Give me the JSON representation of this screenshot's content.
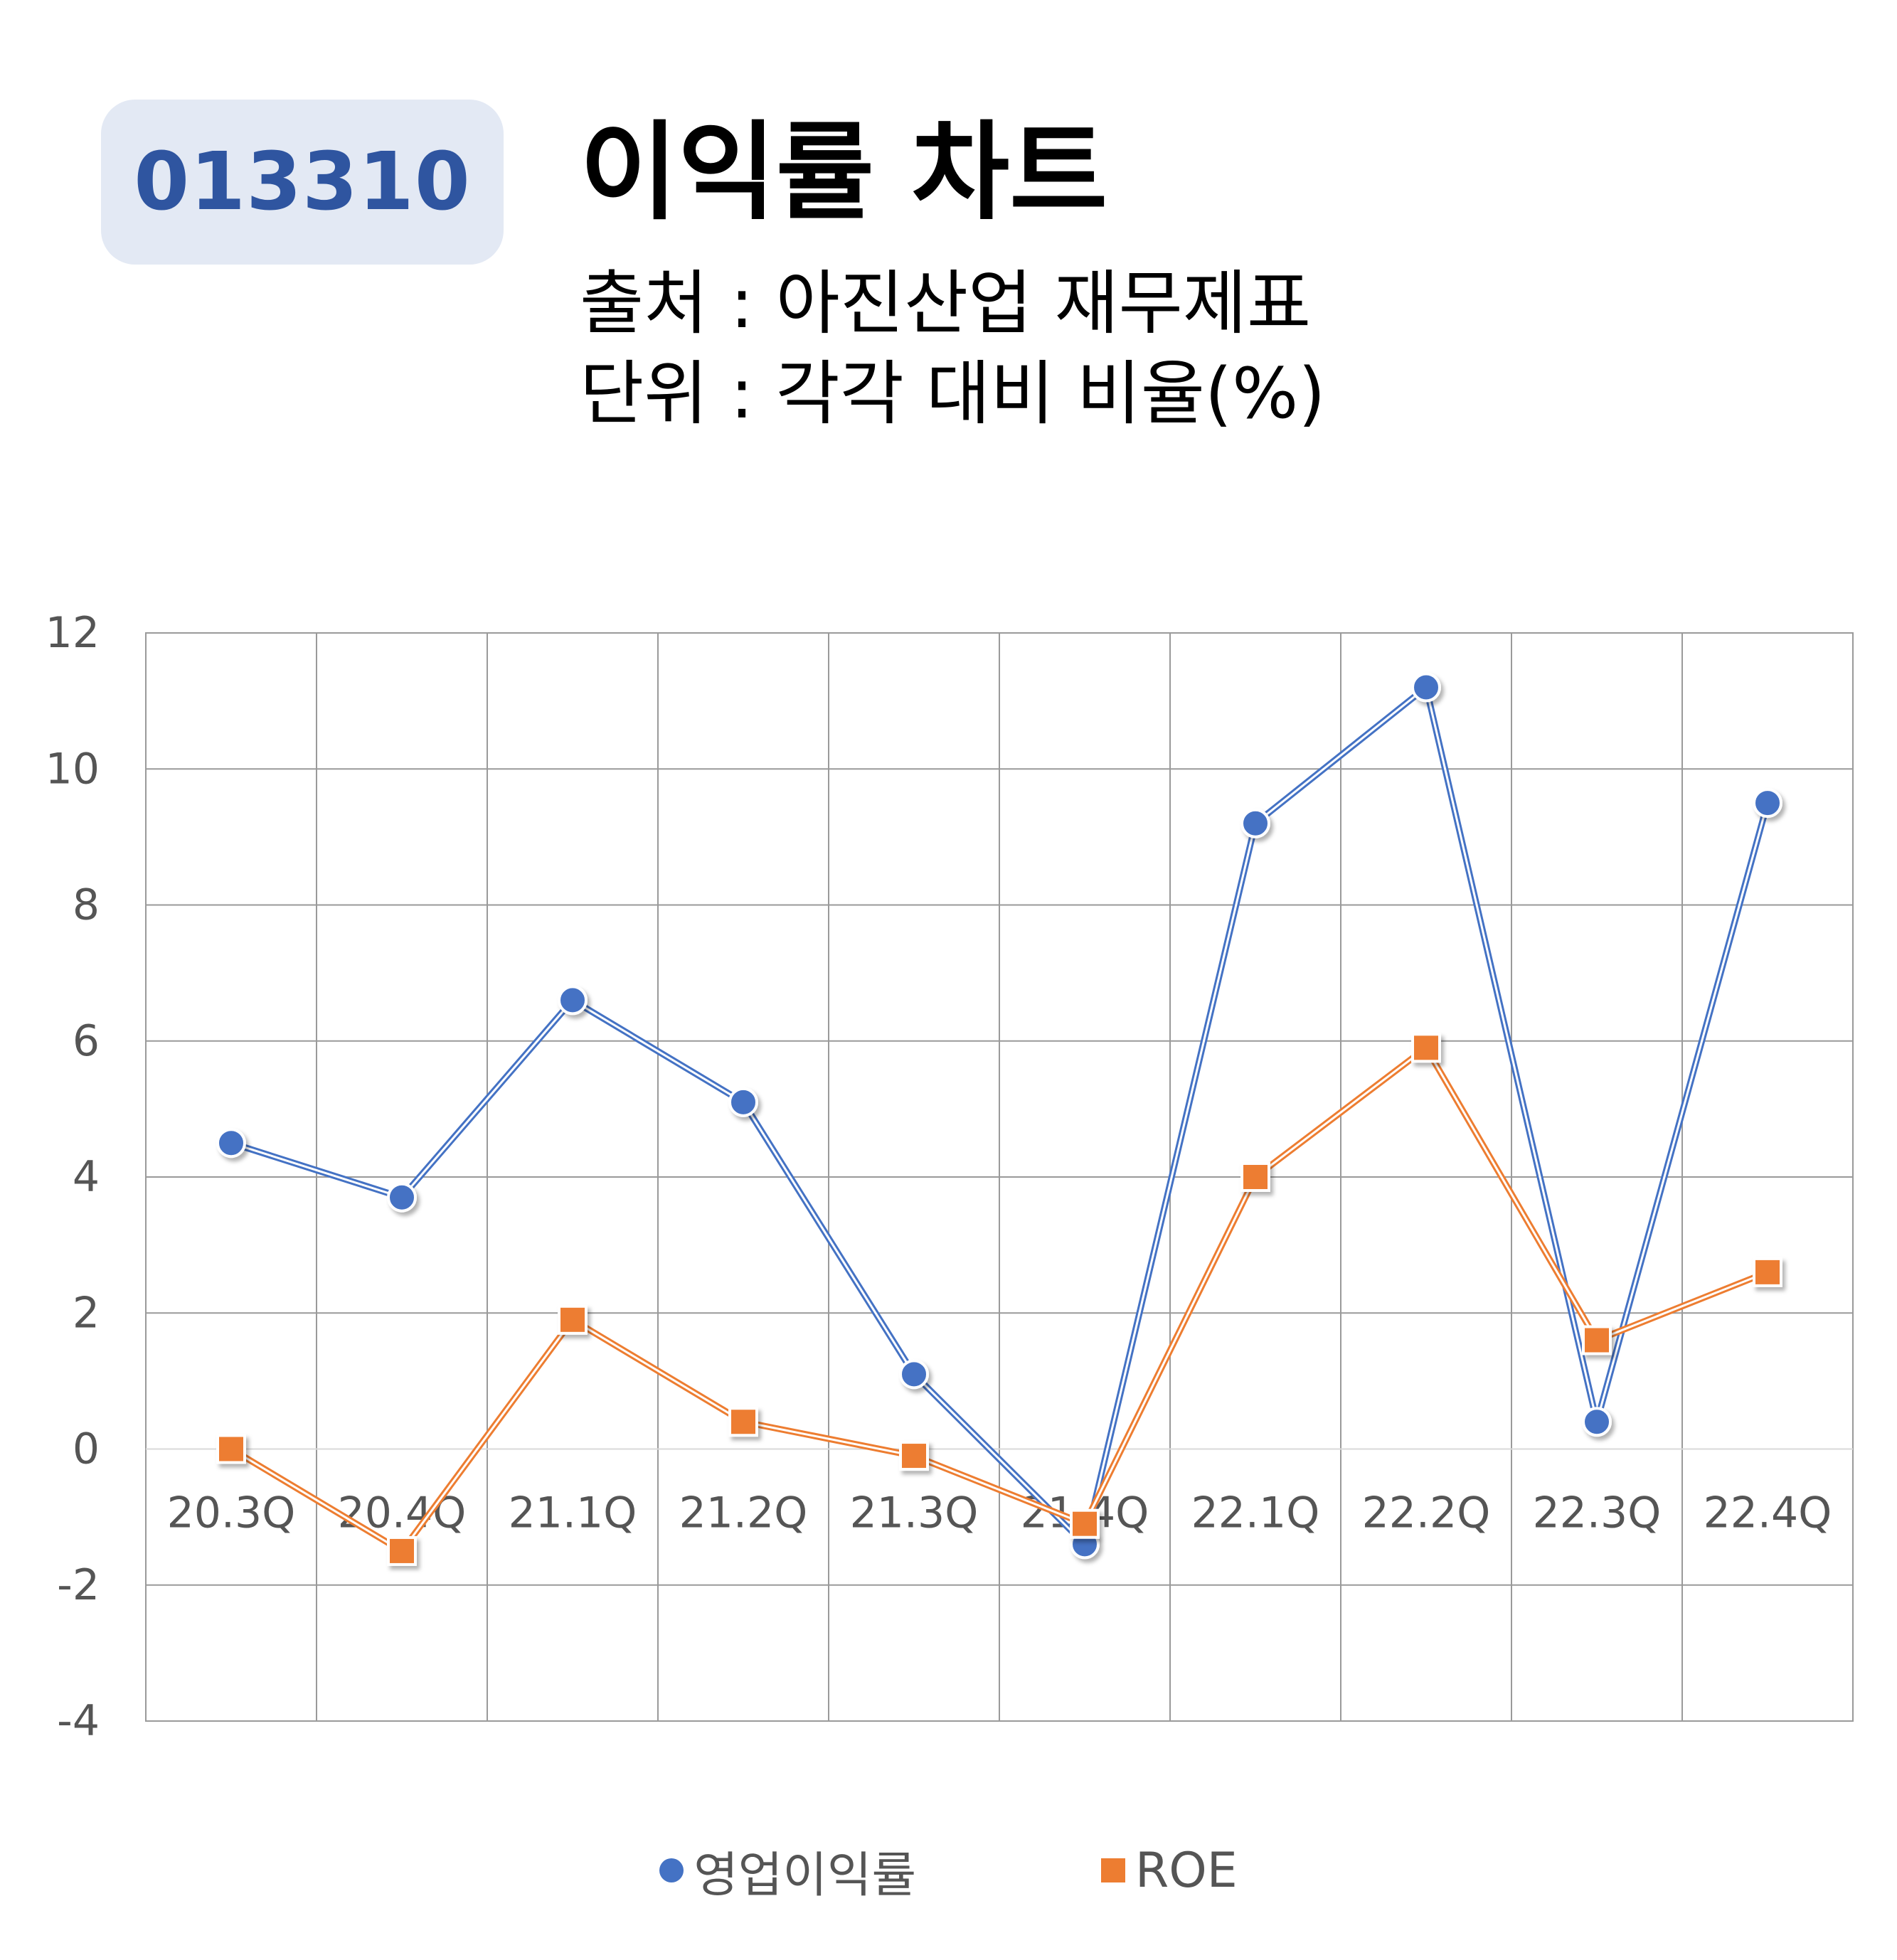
{
  "badge": {
    "code": "013310"
  },
  "header": {
    "title": "이익률 차트",
    "source": "출처 : 아진산업 재무제표",
    "unit": "단위 : 각각 대비 비율(%)"
  },
  "colors": {
    "operating_margin": "#4472c4",
    "roe": "#ed7d31",
    "badge_bg": "#e3e9f4",
    "badge_text": "#2f55a0",
    "grid": "#9a9a9a"
  },
  "chart_data": {
    "type": "line",
    "categories": [
      "20.3Q",
      "20.4Q",
      "21.1Q",
      "21.2Q",
      "21.3Q",
      "21.4Q",
      "22.1Q",
      "22.2Q",
      "22.3Q",
      "22.4Q"
    ],
    "series": [
      {
        "name": "영업이익률",
        "marker": "circle",
        "values": [
          4.5,
          3.7,
          6.6,
          5.1,
          1.1,
          -1.4,
          9.2,
          11.2,
          0.4,
          9.5
        ]
      },
      {
        "name": "ROE",
        "marker": "square",
        "values": [
          0.0,
          -1.5,
          1.9,
          0.4,
          -0.1,
          -1.1,
          4.0,
          5.9,
          1.6,
          2.6
        ]
      }
    ],
    "ylim": [
      -4,
      12
    ],
    "yticks": [
      "-4",
      "-2",
      "0",
      "2",
      "4",
      "6",
      "8",
      "10",
      "12"
    ],
    "grid": true,
    "legend_position": "bottom"
  }
}
